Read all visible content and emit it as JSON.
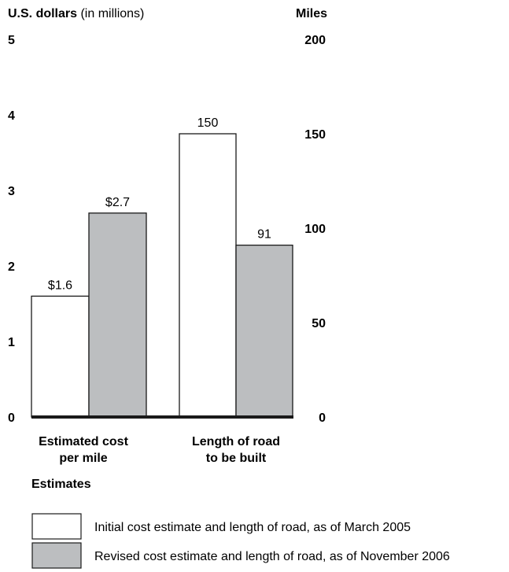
{
  "chart_data": {
    "type": "bar",
    "left_axis": {
      "title_bold": "U.S. dollars",
      "title_rest": "(in millions)",
      "ticks": [
        "0",
        "1",
        "2",
        "3",
        "4",
        "5"
      ],
      "ylim": [
        0,
        5
      ]
    },
    "right_axis": {
      "title": "Miles",
      "ticks": [
        "0",
        "50",
        "100",
        "150",
        "200"
      ],
      "ylim": [
        0,
        200
      ]
    },
    "xlabel": "Estimates",
    "groups": [
      {
        "label_lines": [
          "Estimated cost",
          "per mile"
        ],
        "axis": "left",
        "bars": [
          {
            "series": "initial",
            "value": 1.6,
            "label": "$1.6"
          },
          {
            "series": "revised",
            "value": 2.7,
            "label": "$2.7"
          }
        ]
      },
      {
        "label_lines": [
          "Length of road",
          "to be built"
        ],
        "axis": "right",
        "bars": [
          {
            "series": "initial",
            "value": 150,
            "label": "150"
          },
          {
            "series": "revised",
            "value": 91,
            "label": "91"
          }
        ]
      }
    ],
    "series": [
      {
        "key": "initial",
        "name": "Initial cost estimate and length of road, as of March 2005",
        "color": "#ffffff"
      },
      {
        "key": "revised",
        "name": "Revised cost estimate and length of road, as of November 2006",
        "color": "#bcbec0"
      }
    ]
  }
}
